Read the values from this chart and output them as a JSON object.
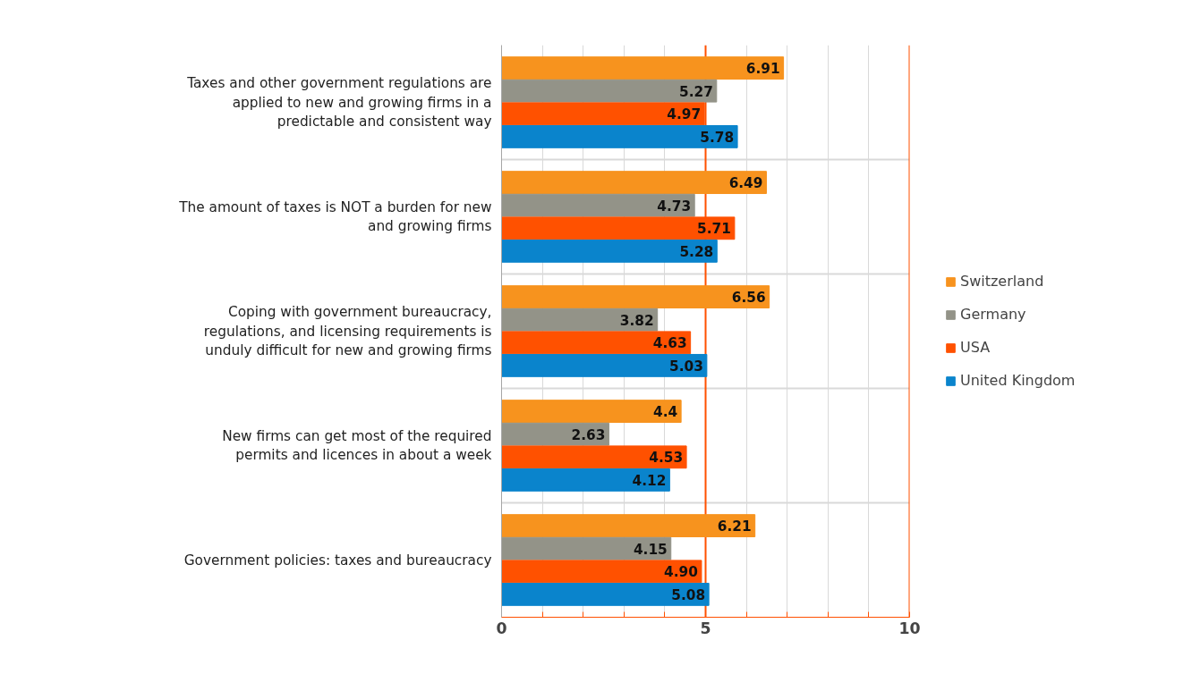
{
  "chart_data": {
    "type": "bar",
    "orientation": "horizontal",
    "categories": [
      "Taxes and other government regulations are applied to new and growing firms in a predictable and consistent way",
      "The amount of taxes is NOT a burden for new and growing firms",
      "Coping with government bureaucracy, regulations, and licensing requirements is unduly difficult for new and growing firms",
      "New firms can get most of the required permits and licences in about a week",
      "Government policies: taxes and bureaucracy"
    ],
    "series": [
      {
        "name": "Switzerland",
        "color": "#f7931e",
        "values": [
          6.91,
          6.49,
          6.56,
          4.4,
          6.21
        ],
        "value_labels": [
          "6.91",
          "6.49",
          "6.56",
          "4.4",
          "6.21"
        ]
      },
      {
        "name": "Germany",
        "color": "#939388",
        "values": [
          5.27,
          4.73,
          3.82,
          2.63,
          4.15
        ],
        "value_labels": [
          "5.27",
          "4.73",
          "3.82",
          "2.63",
          "4.15"
        ]
      },
      {
        "name": "USA",
        "color": "#ff5100",
        "values": [
          4.97,
          5.71,
          4.63,
          4.53,
          4.9
        ],
        "value_labels": [
          "4.97",
          "5.71",
          "4.63",
          "4.53",
          "4.90"
        ]
      },
      {
        "name": "United Kingdom",
        "color": "#0a84cc",
        "values": [
          5.78,
          5.28,
          5.03,
          4.12,
          5.08
        ],
        "value_labels": [
          "5.78",
          "5.28",
          "5.03",
          "4.12",
          "5.08"
        ]
      }
    ],
    "xlim": [
      0,
      10
    ],
    "xticks": [
      0,
      {
        "value": 1,
        "label": null
      },
      {
        "value": 2,
        "label": null
      },
      {
        "value": 3,
        "label": null
      },
      {
        "value": 4,
        "label": null
      },
      5,
      {
        "value": 6,
        "label": null
      },
      {
        "value": 7,
        "label": null
      },
      {
        "value": 8,
        "label": null
      },
      {
        "value": 9,
        "label": null
      },
      10
    ],
    "ref_lines": [
      {
        "axis": "x",
        "value": 5,
        "color": "#ff5100"
      },
      {
        "axis": "x",
        "value": 10,
        "color": "#ff5100"
      }
    ],
    "grid": true,
    "legend": "right"
  }
}
